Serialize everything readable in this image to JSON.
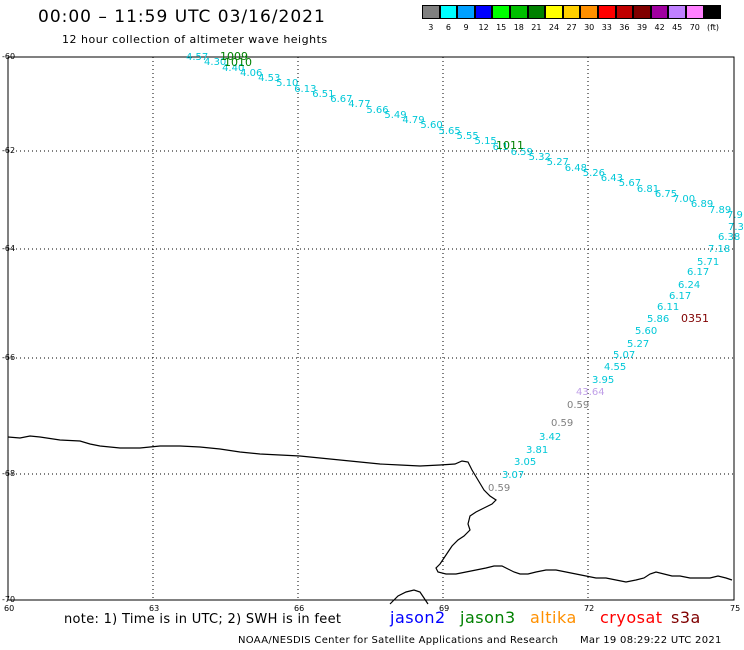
{
  "header": {
    "title": "00:00 – 11:59 UTC 03/16/2021",
    "subtitle": "12 hour collection of altimeter wave heights"
  },
  "legend": {
    "unit": "(ft)",
    "bins": [
      {
        "label": "3",
        "color": "#808080"
      },
      {
        "label": "6",
        "color": "#00ffff"
      },
      {
        "label": "9",
        "color": "#00a0ff"
      },
      {
        "label": "12",
        "color": "#0000ff"
      },
      {
        "label": "15",
        "color": "#00ff00"
      },
      {
        "label": "18",
        "color": "#00c000"
      },
      {
        "label": "21",
        "color": "#008000"
      },
      {
        "label": "24",
        "color": "#ffff00"
      },
      {
        "label": "27",
        "color": "#ffd000"
      },
      {
        "label": "30",
        "color": "#ff9000"
      },
      {
        "label": "33",
        "color": "#ff0000"
      },
      {
        "label": "36",
        "color": "#c00000"
      },
      {
        "label": "39",
        "color": "#800000"
      },
      {
        "label": "42",
        "color": "#a000a0"
      },
      {
        "label": "45",
        "color": "#c080ff"
      },
      {
        "label": "70",
        "color": "#ff80ff"
      },
      {
        "label": "",
        "color": "#000000"
      }
    ]
  },
  "axes": {
    "lat_labels": [
      "-60",
      "-62",
      "-64",
      "-66",
      "-68",
      "-70"
    ],
    "lon_labels": [
      "60",
      "63",
      "66",
      "69",
      "72",
      "75"
    ]
  },
  "track1": {
    "time_labels": [
      {
        "text": "1009",
        "color": "#008000"
      },
      {
        "text": "1010",
        "color": "#008000"
      },
      {
        "text": "1011",
        "color": "#008000"
      }
    ],
    "values": [
      "4.57",
      "4.30",
      "4.40",
      "4.06",
      "4.53",
      "5.10",
      "6.13",
      "6.51",
      "6.67",
      "4.77",
      "5.66",
      "5.49",
      "4.79",
      "5.60",
      "5.65",
      "5.55",
      "5.15",
      "6.1",
      "6.59",
      "5.32",
      "5.27",
      "6.48",
      "5.26",
      "6.43",
      "5.67",
      "6.81",
      "6.75",
      "7.00",
      "6.89",
      "7.89",
      "7.9"
    ]
  },
  "track2": {
    "time_labels": [
      {
        "text": "0351",
        "color": "#800000"
      }
    ],
    "values": [
      {
        "text": "7.3",
        "color": "#00c8d8"
      },
      {
        "text": "6.38",
        "color": "#00c8d8"
      },
      {
        "text": "7.18",
        "color": "#00c8d8"
      },
      {
        "text": "5.71",
        "color": "#00c8d8"
      },
      {
        "text": "6.17",
        "color": "#00c8d8"
      },
      {
        "text": "6.24",
        "color": "#00c8d8"
      },
      {
        "text": "6.17",
        "color": "#00c8d8"
      },
      {
        "text": "6.11",
        "color": "#00c8d8"
      },
      {
        "text": "5.86",
        "color": "#00c8d8"
      },
      {
        "text": "5.60",
        "color": "#00c8d8"
      },
      {
        "text": "5.27",
        "color": "#00c8d8"
      },
      {
        "text": "5.07",
        "color": "#00c8d8"
      },
      {
        "text": "4.55",
        "color": "#00c8d8"
      },
      {
        "text": "3.95",
        "color": "#00c8d8"
      },
      {
        "text": "43.64",
        "color": "#c0a0e8"
      },
      {
        "text": "0.59",
        "color": "#808080"
      },
      {
        "text": "0.59",
        "color": "#808080"
      },
      {
        "text": "3.42",
        "color": "#00c8d8"
      },
      {
        "text": "3.81",
        "color": "#00c8d8"
      },
      {
        "text": "3.05",
        "color": "#00c8d8"
      },
      {
        "text": "3.07",
        "color": "#00c8d8"
      },
      {
        "text": "0.59",
        "color": "#808080"
      }
    ]
  },
  "footer": {
    "note": "note: 1) Time is in UTC; 2) SWH is in feet",
    "satellites": [
      {
        "name": "jason2",
        "color": "#0000ff"
      },
      {
        "name": "jason3",
        "color": "#008000"
      },
      {
        "name": "altika",
        "color": "#ff9000"
      },
      {
        "name": "cryosat",
        "color": "#ff0000"
      },
      {
        "name": "s3a",
        "color": "#800000"
      }
    ],
    "credit": "NOAA/NESDIS Center for Satellite Applications and Research",
    "timestamp": "Mar 19 08:29:22 UTC 2021"
  }
}
